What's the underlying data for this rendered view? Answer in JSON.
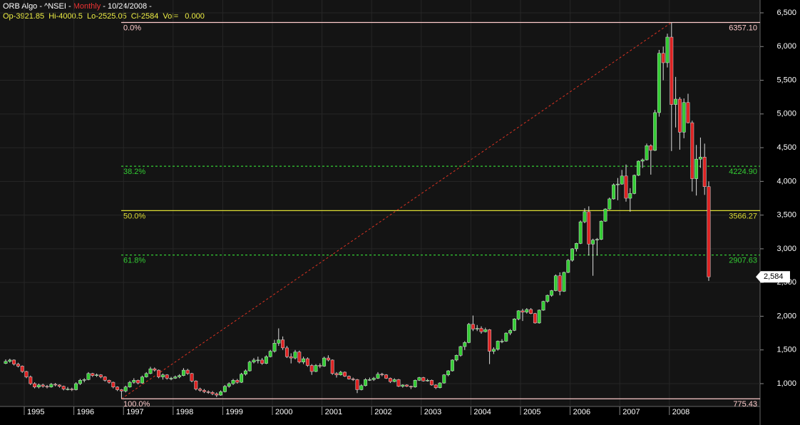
{
  "chart_data": {
    "type": "candlestick",
    "title": "ORB Algo - ^NSEI - ",
    "interval": "Monthly",
    "date": " - 10/24/2008 -",
    "ohlc_text": "Op-3921.85  Hi-4000.5  Lo-2525.05  Cl-2584  Vol=   0.000",
    "up_color": "#33cc33",
    "down_color": "#dd2222",
    "grid": true,
    "ylim": [
      775,
      6500
    ],
    "yticks": [
      {
        "value": 1000,
        "label": "1,000"
      },
      {
        "value": 1500,
        "label": "1,500"
      },
      {
        "value": 2000,
        "label": "2,000"
      },
      {
        "value": 2500,
        "label": "2,500"
      },
      {
        "value": 3000,
        "label": "3,000"
      },
      {
        "value": 3500,
        "label": "3,500"
      },
      {
        "value": 4000,
        "label": "4,000"
      },
      {
        "value": 4500,
        "label": "4,500"
      },
      {
        "value": 5000,
        "label": "5,000"
      },
      {
        "value": 5500,
        "label": "5,500"
      },
      {
        "value": 6000,
        "label": "6,000"
      },
      {
        "value": 6500,
        "label": "6,500"
      }
    ],
    "xticks": [
      {
        "value": 5,
        "label": "1995"
      },
      {
        "value": 17,
        "label": "1996"
      },
      {
        "value": 29,
        "label": "1997"
      },
      {
        "value": 41,
        "label": "1998"
      },
      {
        "value": 53,
        "label": "1999"
      },
      {
        "value": 65,
        "label": "2000"
      },
      {
        "value": 77,
        "label": "2001"
      },
      {
        "value": 89,
        "label": "2002"
      },
      {
        "value": 101,
        "label": "2003"
      },
      {
        "value": 113,
        "label": "2004"
      },
      {
        "value": 125,
        "label": "2005"
      },
      {
        "value": 137,
        "label": "2006"
      },
      {
        "value": 149,
        "label": "2007"
      },
      {
        "value": 161,
        "label": "2008"
      }
    ],
    "last_price": {
      "value": 2584,
      "label": "2,584"
    },
    "fib_levels": [
      {
        "name": "0.0%",
        "value": 6357.1,
        "label": "6357.10",
        "color": "#ffcccc",
        "dashed": false
      },
      {
        "name": "38.2%",
        "value": 4224.9,
        "label": "4224.90",
        "color": "#33cc33",
        "dashed": true
      },
      {
        "name": "50.0%",
        "value": 3566.27,
        "label": "3566.27",
        "color": "#dddd33",
        "dashed": false
      },
      {
        "name": "61.8%",
        "value": 2907.63,
        "label": "2907.63",
        "color": "#33cc33",
        "dashed": true
      },
      {
        "name": "100.0%",
        "value": 775.43,
        "label": "775.43",
        "color": "#ffcccc",
        "dashed": false
      }
    ],
    "candles": [
      [
        1300,
        1360,
        1290,
        1330
      ],
      [
        1330,
        1370,
        1310,
        1350
      ],
      [
        1350,
        1360,
        1270,
        1290
      ],
      [
        1290,
        1310,
        1240,
        1260
      ],
      [
        1260,
        1270,
        1160,
        1180
      ],
      [
        1180,
        1190,
        1080,
        1100
      ],
      [
        1100,
        1120,
        980,
        1000
      ],
      [
        1000,
        1020,
        930,
        950
      ],
      [
        950,
        1000,
        930,
        980
      ],
      [
        980,
        1000,
        940,
        960
      ],
      [
        960,
        980,
        930,
        950
      ],
      [
        950,
        1010,
        940,
        990
      ],
      [
        990,
        1010,
        960,
        980
      ],
      [
        980,
        990,
        940,
        960
      ],
      [
        960,
        970,
        900,
        920
      ],
      [
        920,
        950,
        900,
        920
      ],
      [
        920,
        940,
        890,
        910
      ],
      [
        910,
        1020,
        900,
        1000
      ],
      [
        1000,
        1070,
        980,
        1050
      ],
      [
        1050,
        1080,
        1020,
        1060
      ],
      [
        1060,
        1170,
        1050,
        1150
      ],
      [
        1150,
        1160,
        1100,
        1120
      ],
      [
        1120,
        1150,
        1100,
        1130
      ],
      [
        1130,
        1140,
        1080,
        1100
      ],
      [
        1100,
        1110,
        1030,
        1050
      ],
      [
        1050,
        1060,
        1000,
        1020
      ],
      [
        1020,
        1030,
        930,
        950
      ],
      [
        950,
        960,
        890,
        910
      ],
      [
        910,
        920,
        776,
        890
      ],
      [
        890,
        970,
        870,
        950
      ],
      [
        950,
        1040,
        940,
        1020
      ],
      [
        1020,
        1080,
        1000,
        1050
      ],
      [
        1050,
        1060,
        990,
        1010
      ],
      [
        1010,
        1120,
        1000,
        1100
      ],
      [
        1100,
        1170,
        1090,
        1150
      ],
      [
        1150,
        1250,
        1140,
        1220
      ],
      [
        1220,
        1240,
        1180,
        1200
      ],
      [
        1200,
        1210,
        1080,
        1100
      ],
      [
        1100,
        1150,
        1060,
        1130
      ],
      [
        1130,
        1140,
        1060,
        1080
      ],
      [
        1080,
        1100,
        1050,
        1080
      ],
      [
        1080,
        1120,
        1070,
        1100
      ],
      [
        1100,
        1140,
        1080,
        1120
      ],
      [
        1120,
        1230,
        1110,
        1200
      ],
      [
        1200,
        1220,
        1130,
        1150
      ],
      [
        1150,
        1160,
        1020,
        1040
      ],
      [
        1040,
        1050,
        900,
        920
      ],
      [
        920,
        940,
        880,
        900
      ],
      [
        900,
        920,
        860,
        880
      ],
      [
        880,
        900,
        850,
        870
      ],
      [
        870,
        890,
        830,
        850
      ],
      [
        850,
        870,
        800,
        830
      ],
      [
        830,
        900,
        820,
        880
      ],
      [
        880,
        980,
        870,
        960
      ],
      [
        960,
        1020,
        940,
        1000
      ],
      [
        1000,
        1070,
        980,
        1050
      ],
      [
        1050,
        1070,
        1000,
        1020
      ],
      [
        1020,
        1160,
        1010,
        1140
      ],
      [
        1140,
        1210,
        1120,
        1190
      ],
      [
        1190,
        1340,
        1180,
        1320
      ],
      [
        1320,
        1380,
        1300,
        1350
      ],
      [
        1350,
        1400,
        1300,
        1350
      ],
      [
        1350,
        1380,
        1280,
        1300
      ],
      [
        1300,
        1420,
        1290,
        1400
      ],
      [
        1400,
        1500,
        1390,
        1480
      ],
      [
        1480,
        1650,
        1460,
        1600
      ],
      [
        1600,
        1820,
        1560,
        1650
      ],
      [
        1650,
        1700,
        1500,
        1530
      ],
      [
        1530,
        1560,
        1380,
        1400
      ],
      [
        1400,
        1450,
        1300,
        1380
      ],
      [
        1380,
        1500,
        1360,
        1470
      ],
      [
        1470,
        1490,
        1300,
        1320
      ],
      [
        1320,
        1400,
        1290,
        1370
      ],
      [
        1370,
        1390,
        1250,
        1270
      ],
      [
        1270,
        1290,
        1130,
        1180
      ],
      [
        1180,
        1290,
        1170,
        1270
      ],
      [
        1270,
        1300,
        1230,
        1260
      ],
      [
        1260,
        1400,
        1250,
        1380
      ],
      [
        1380,
        1420,
        1330,
        1350
      ],
      [
        1350,
        1360,
        1130,
        1150
      ],
      [
        1150,
        1170,
        1090,
        1130
      ],
      [
        1130,
        1190,
        1120,
        1170
      ],
      [
        1170,
        1180,
        1100,
        1110
      ],
      [
        1110,
        1120,
        1060,
        1070
      ],
      [
        1070,
        1090,
        1040,
        1060
      ],
      [
        1060,
        1070,
        860,
        910
      ],
      [
        910,
        990,
        900,
        970
      ],
      [
        970,
        1080,
        960,
        1060
      ],
      [
        1060,
        1090,
        1040,
        1060
      ],
      [
        1060,
        1100,
        1040,
        1080
      ],
      [
        1080,
        1170,
        1070,
        1140
      ],
      [
        1140,
        1160,
        1110,
        1130
      ],
      [
        1130,
        1140,
        1070,
        1080
      ],
      [
        1080,
        1090,
        1010,
        1030
      ],
      [
        1030,
        1080,
        1020,
        1060
      ],
      [
        1060,
        1070,
        950,
        960
      ],
      [
        960,
        990,
        940,
        980
      ],
      [
        980,
        990,
        950,
        960
      ],
      [
        960,
        970,
        920,
        950
      ],
      [
        950,
        1060,
        940,
        1050
      ],
      [
        1050,
        1100,
        1040,
        1090
      ],
      [
        1090,
        1100,
        1030,
        1040
      ],
      [
        1040,
        1070,
        1030,
        1050
      ],
      [
        1050,
        1060,
        970,
        980
      ],
      [
        980,
        990,
        920,
        940
      ],
      [
        940,
        1020,
        930,
        1010
      ],
      [
        1010,
        1140,
        1000,
        1130
      ],
      [
        1130,
        1200,
        1110,
        1190
      ],
      [
        1190,
        1360,
        1180,
        1350
      ],
      [
        1350,
        1430,
        1330,
        1420
      ],
      [
        1420,
        1560,
        1400,
        1550
      ],
      [
        1550,
        1630,
        1500,
        1610
      ],
      [
        1610,
        1900,
        1600,
        1880
      ],
      [
        1880,
        2010,
        1780,
        1810
      ],
      [
        1810,
        1870,
        1780,
        1820
      ],
      [
        1820,
        1850,
        1740,
        1770
      ],
      [
        1770,
        1830,
        1760,
        1800
      ],
      [
        1800,
        1810,
        1290,
        1480
      ],
      [
        1480,
        1540,
        1440,
        1510
      ],
      [
        1510,
        1640,
        1490,
        1630
      ],
      [
        1630,
        1660,
        1600,
        1630
      ],
      [
        1630,
        1760,
        1620,
        1750
      ],
      [
        1750,
        1810,
        1720,
        1790
      ],
      [
        1790,
        1970,
        1780,
        1960
      ],
      [
        1960,
        2090,
        1940,
        2080
      ],
      [
        2080,
        2110,
        1930,
        2060
      ],
      [
        2060,
        2120,
        2040,
        2100
      ],
      [
        2100,
        2120,
        2030,
        2040
      ],
      [
        2040,
        2050,
        1890,
        1900
      ],
      [
        1900,
        2100,
        1890,
        2090
      ],
      [
        2090,
        2230,
        2080,
        2220
      ],
      [
        2220,
        2320,
        2200,
        2310
      ],
      [
        2310,
        2390,
        2290,
        2380
      ],
      [
        2380,
        2620,
        2370,
        2600
      ],
      [
        2600,
        2650,
        2310,
        2370
      ],
      [
        2370,
        2660,
        2360,
        2650
      ],
      [
        2650,
        2850,
        2640,
        2830
      ],
      [
        2830,
        3010,
        2810,
        3000
      ],
      [
        3000,
        3090,
        2960,
        3080
      ],
      [
        3080,
        3420,
        3070,
        3400
      ],
      [
        3400,
        3600,
        3380,
        3550
      ],
      [
        3550,
        3630,
        2900,
        3070
      ],
      [
        3070,
        3150,
        2600,
        3130
      ],
      [
        3130,
        3160,
        2900,
        3140
      ],
      [
        3140,
        3420,
        3130,
        3410
      ],
      [
        3410,
        3600,
        3400,
        3590
      ],
      [
        3590,
        3760,
        3580,
        3740
      ],
      [
        3740,
        3970,
        3730,
        3950
      ],
      [
        3950,
        4050,
        3720,
        3960
      ],
      [
        3960,
        4170,
        3950,
        4080
      ],
      [
        4080,
        4250,
        3700,
        3750
      ],
      [
        3750,
        3900,
        3550,
        3820
      ],
      [
        3820,
        4100,
        3810,
        4090
      ],
      [
        4090,
        4310,
        4080,
        4300
      ],
      [
        4300,
        4340,
        4200,
        4320
      ],
      [
        4320,
        4560,
        4310,
        4530
      ],
      [
        4530,
        4550,
        4100,
        4460
      ],
      [
        4460,
        5060,
        4450,
        5020
      ],
      [
        5020,
        5950,
        4960,
        5900
      ],
      [
        5900,
        6000,
        5500,
        5760
      ],
      [
        5760,
        6190,
        5690,
        6140
      ],
      [
        6140,
        6357,
        4450,
        5140
      ],
      [
        5140,
        5550,
        4800,
        5220
      ],
      [
        5220,
        5250,
        4470,
        4730
      ],
      [
        4730,
        5230,
        4640,
        5170
      ],
      [
        5170,
        5300,
        4860,
        4870
      ],
      [
        4870,
        4900,
        3850,
        4040
      ],
      [
        4040,
        4540,
        3790,
        4330
      ],
      [
        4330,
        4650,
        4200,
        4360
      ],
      [
        4360,
        4560,
        3800,
        3921.85
      ],
      [
        3921.85,
        4000.5,
        2525.05,
        2584
      ]
    ]
  }
}
